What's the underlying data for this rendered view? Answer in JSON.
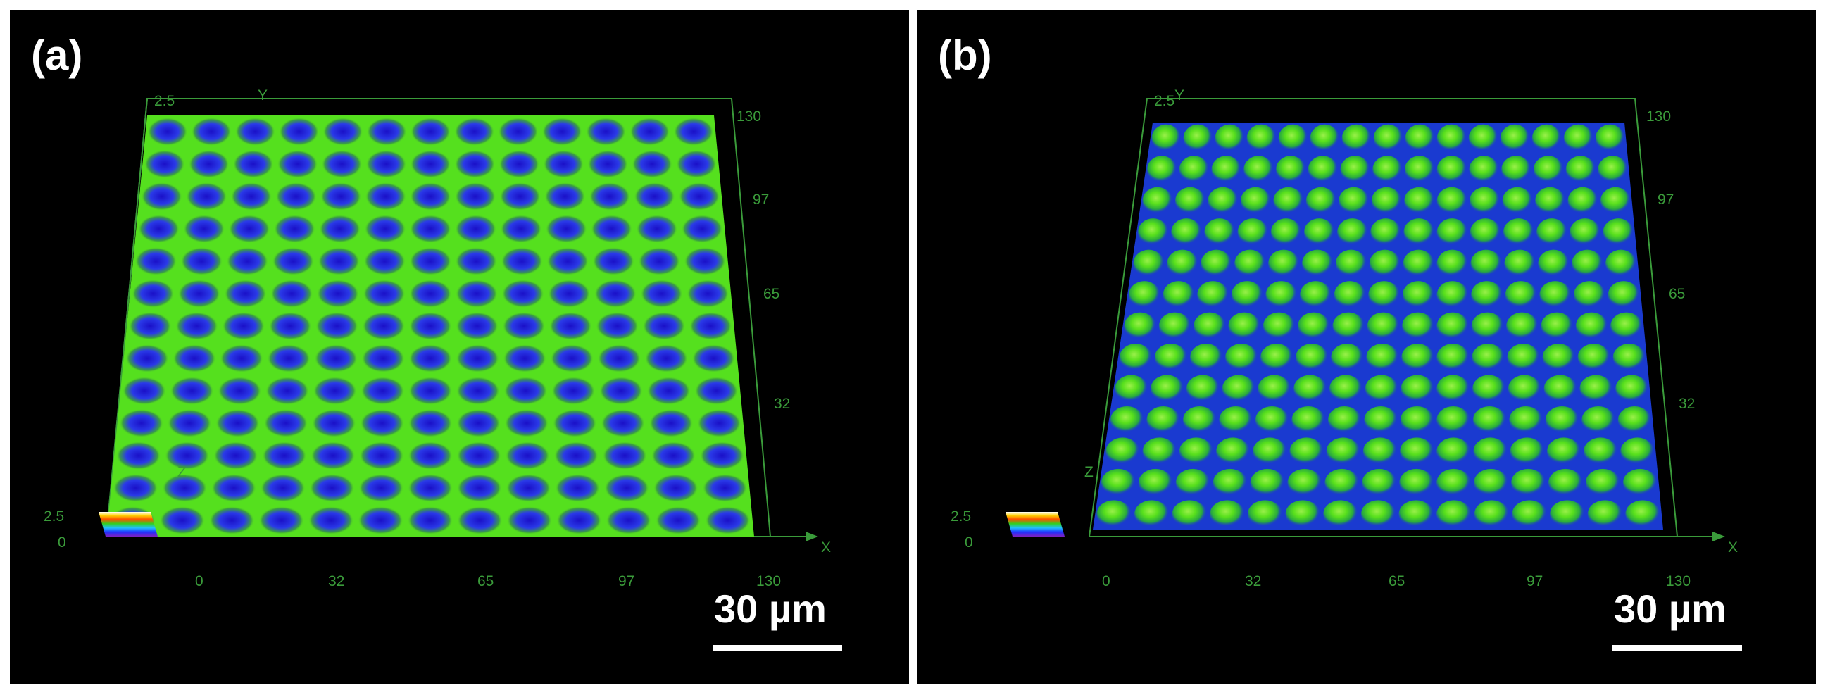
{
  "panels": [
    {
      "label": "(a)",
      "surface": "dimples",
      "scale_bar": "30 µm",
      "x_ticks": [
        "0",
        "32",
        "65",
        "97",
        "130"
      ],
      "y_ticks": [
        "32",
        "65",
        "97",
        "130"
      ],
      "z_top": "2.5",
      "axis_x": "X",
      "axis_y": "Y",
      "axis_z": "Z",
      "legend_max": "2.5",
      "legend_min": "0"
    },
    {
      "label": "(b)",
      "surface": "domes",
      "scale_bar": "30 µm",
      "x_ticks": [
        "0",
        "32",
        "65",
        "97",
        "130"
      ],
      "y_ticks": [
        "32",
        "65",
        "97",
        "130"
      ],
      "z_top": "2.5",
      "axis_x": "X",
      "axis_y": "Y",
      "axis_z": "Z",
      "legend_max": "2.5",
      "legend_min": "0"
    }
  ],
  "colors": {
    "axis": "#3a9b3a",
    "surface_green": "#55e01e",
    "surface_blue": "#1a22d8"
  }
}
